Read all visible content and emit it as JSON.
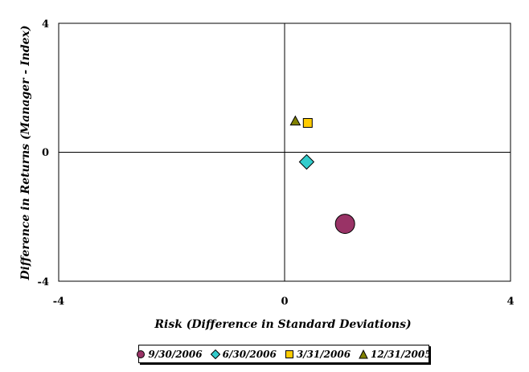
{
  "chart_data": {
    "type": "scatter",
    "title": "",
    "xlabel": "Risk (Difference in Standard Deviations)",
    "ylabel": "Difference in Returns (Manager - Index)",
    "xlim": [
      -4,
      4
    ],
    "ylim": [
      -4,
      4
    ],
    "x_ticks": [
      "-4",
      "0",
      "4"
    ],
    "y_ticks": [
      "4",
      "0",
      "-4"
    ],
    "grid": false,
    "legend_position": "bottom",
    "series": [
      {
        "name": "9/30/2006",
        "marker": "circle",
        "color": "#993366",
        "x": [
          1.07
        ],
        "y": [
          -2.22
        ]
      },
      {
        "name": "6/30/2006",
        "marker": "diamond",
        "color": "#33CCCC",
        "x": [
          0.39
        ],
        "y": [
          -0.3
        ]
      },
      {
        "name": "3/31/2006",
        "marker": "square",
        "color": "#FFCC00",
        "x": [
          0.41
        ],
        "y": [
          0.91
        ]
      },
      {
        "name": "12/31/2005",
        "marker": "triangle",
        "color": "#808000",
        "x": [
          0.19
        ],
        "y": [
          0.97
        ]
      }
    ]
  }
}
